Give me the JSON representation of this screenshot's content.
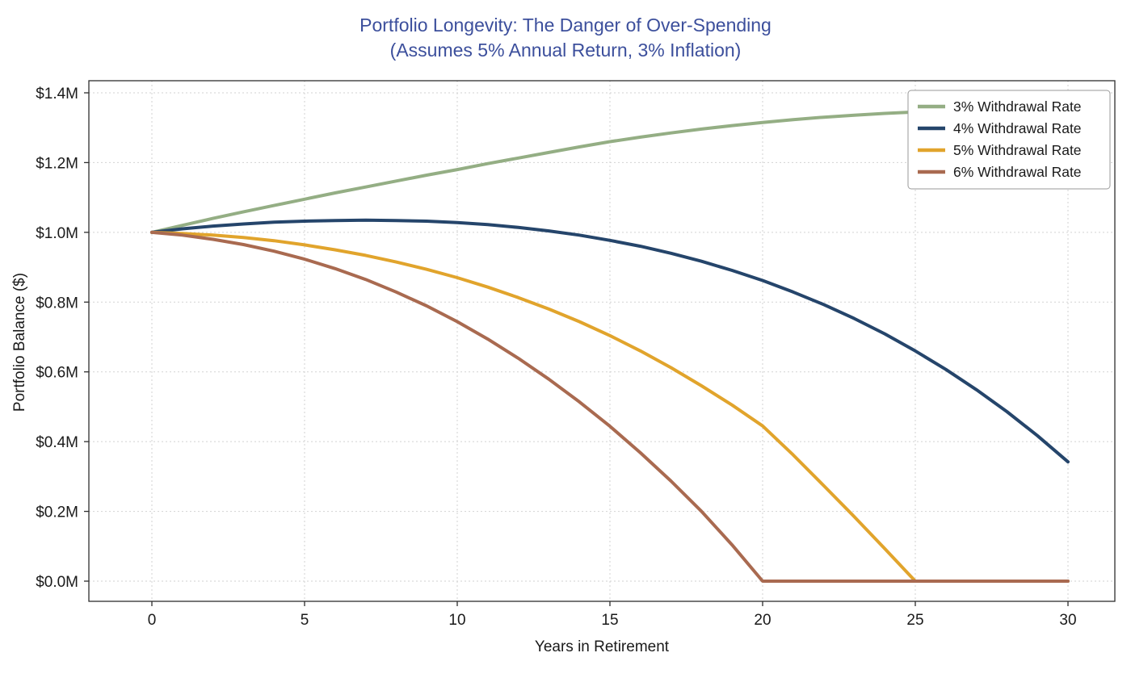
{
  "chart_data": {
    "type": "line",
    "title": "Portfolio Longevity: The Danger of Over-Spending",
    "subtitle": "(Assumes 5% Annual Return, 3% Inflation)",
    "title_color": "#3c4f9c",
    "xlabel": "Years in Retirement",
    "ylabel": "Portfolio Balance ($)",
    "units": "millions USD",
    "xlim": [
      0,
      30
    ],
    "ylim": [
      0,
      1.4
    ],
    "grid": true,
    "grid_style": "dashed",
    "legend_position": "upper right",
    "x_ticks": [
      0,
      5,
      10,
      15,
      20,
      25,
      30
    ],
    "x_tick_labels": [
      "0",
      "5",
      "10",
      "15",
      "20",
      "25",
      "30"
    ],
    "y_ticks": [
      0,
      0.2,
      0.4,
      0.6,
      0.8,
      1.0,
      1.2,
      1.4
    ],
    "y_tick_labels": [
      "$0.0M",
      "$0.2M",
      "$0.4M",
      "$0.6M",
      "$0.8M",
      "$1.0M",
      "$1.2M",
      "$1.4M"
    ],
    "x": [
      0,
      1,
      2,
      3,
      4,
      5,
      6,
      7,
      8,
      9,
      10,
      11,
      12,
      13,
      14,
      15,
      16,
      17,
      18,
      19,
      20,
      21,
      22,
      23,
      24,
      25,
      26,
      27,
      28,
      29,
      30
    ],
    "series": [
      {
        "name": "3% Withdrawal Rate",
        "color": "#94ae84",
        "values": [
          1.0,
          1.02,
          1.04,
          1.059,
          1.077,
          1.095,
          1.113,
          1.13,
          1.147,
          1.164,
          1.18,
          1.197,
          1.213,
          1.229,
          1.245,
          1.26,
          1.273,
          1.285,
          1.296,
          1.306,
          1.315,
          1.323,
          1.33,
          1.336,
          1.341,
          1.345,
          1.348,
          1.35,
          1.351,
          1.351,
          1.35
        ]
      },
      {
        "name": "4% Withdrawal Rate",
        "color": "#25456b",
        "values": [
          1.0,
          1.01,
          1.018,
          1.024,
          1.029,
          1.032,
          1.034,
          1.035,
          1.034,
          1.032,
          1.028,
          1.022,
          1.014,
          1.004,
          0.992,
          0.977,
          0.96,
          0.94,
          0.917,
          0.891,
          0.862,
          0.829,
          0.793,
          0.753,
          0.709,
          0.66,
          0.607,
          0.549,
          0.486,
          0.417,
          0.342
        ]
      },
      {
        "name": "5% Withdrawal Rate",
        "color": "#e1a42c",
        "values": [
          1.0,
          0.997,
          0.992,
          0.985,
          0.976,
          0.964,
          0.95,
          0.934,
          0.915,
          0.894,
          0.87,
          0.843,
          0.813,
          0.78,
          0.744,
          0.704,
          0.66,
          0.612,
          0.56,
          0.505,
          0.445,
          0.362,
          0.274,
          0.185,
          0.093,
          0.0,
          0.0,
          0.0,
          0.0,
          0.0,
          0.0
        ]
      },
      {
        "name": "6% Withdrawal Rate",
        "color": "#a96a50",
        "values": [
          1.0,
          0.992,
          0.98,
          0.965,
          0.946,
          0.923,
          0.896,
          0.865,
          0.829,
          0.789,
          0.744,
          0.694,
          0.639,
          0.579,
          0.514,
          0.444,
          0.368,
          0.287,
          0.2,
          0.104,
          0.0,
          0.0,
          0.0,
          0.0,
          0.0,
          0.0,
          0.0,
          0.0,
          0.0,
          0.0,
          0.0
        ]
      }
    ]
  }
}
